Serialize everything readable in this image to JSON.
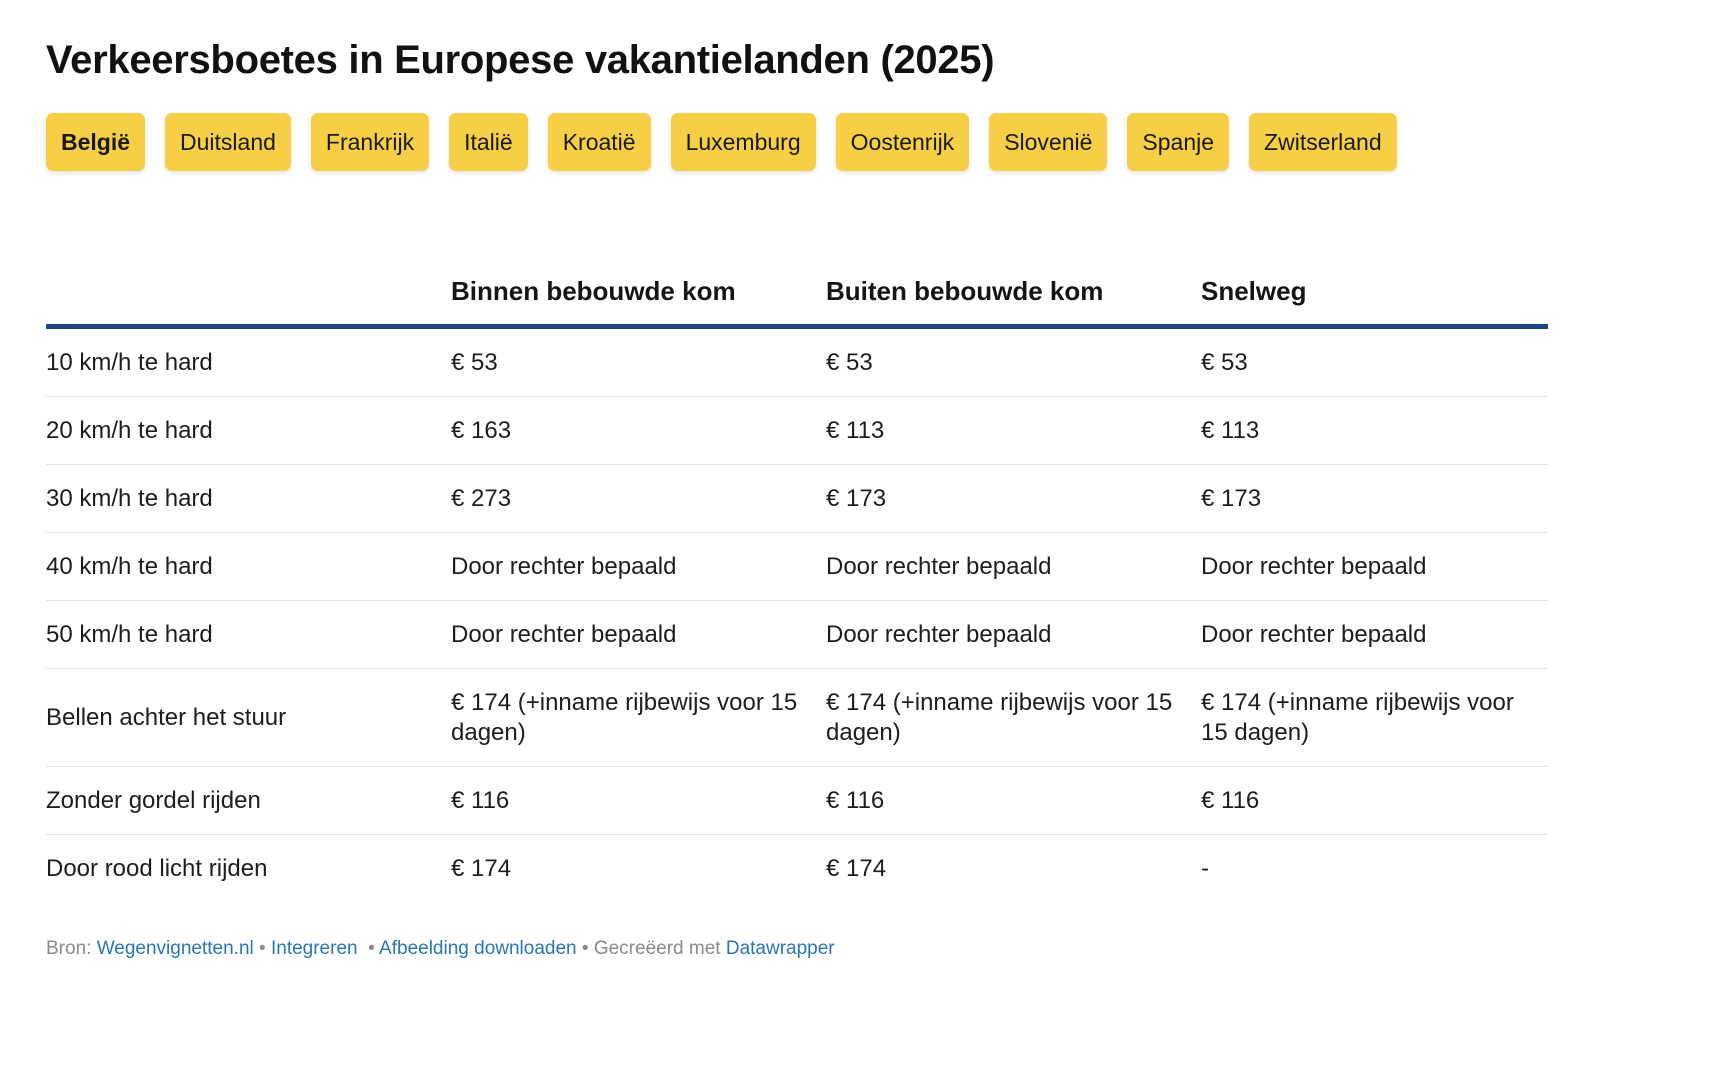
{
  "title": "Verkeersboetes in Europese vakantielanden (2025)",
  "tabs": [
    {
      "label": "België",
      "active": true
    },
    {
      "label": "Duitsland"
    },
    {
      "label": "Frankrijk"
    },
    {
      "label": "Italië"
    },
    {
      "label": "Kroatië"
    },
    {
      "label": "Luxemburg"
    },
    {
      "label": "Oostenrijk"
    },
    {
      "label": "Slovenië"
    },
    {
      "label": "Spanje"
    },
    {
      "label": "Zwitserland"
    }
  ],
  "table": {
    "headers": [
      "",
      "Binnen bebouwde kom",
      "Buiten bebouwde kom",
      "Snelweg"
    ],
    "rows": [
      [
        "10 km/h te hard",
        "€ 53",
        "€ 53",
        "€ 53"
      ],
      [
        "20 km/h te hard",
        "€ 163",
        "€ 113",
        "€ 113"
      ],
      [
        "30 km/h te hard",
        "€ 273",
        "€ 173",
        "€ 173"
      ],
      [
        "40 km/h te hard",
        "Door rechter bepaald",
        "Door rechter bepaald",
        "Door rechter bepaald"
      ],
      [
        "50 km/h te hard",
        "Door rechter bepaald",
        "Door rechter bepaald",
        "Door rechter bepaald"
      ],
      [
        "Bellen achter het stuur",
        "€ 174 (+inname rijbewijs voor 15 dagen)",
        "€ 174 (+inname rijbewijs voor 15 dagen)",
        "€ 174 (+inname rijbewijs voor 15 dagen)"
      ],
      [
        "Zonder gordel rijden",
        "€ 116",
        "€ 116",
        "€ 116"
      ],
      [
        "Door rood licht rijden",
        "€ 174",
        "€ 174",
        "-"
      ]
    ]
  },
  "footer": {
    "source_label": "Bron:",
    "source_link": "Wegenvignetten.nl",
    "embed_link": "Integreren",
    "download_link": "Afbeelding downloaden",
    "created_label": "Gecreëerd met",
    "tool_link": "Datawrapper",
    "separator": "•"
  },
  "colors": {
    "tab_background": "#f7cf47",
    "header_rule": "#1f4584",
    "link": "#2a75b3"
  }
}
